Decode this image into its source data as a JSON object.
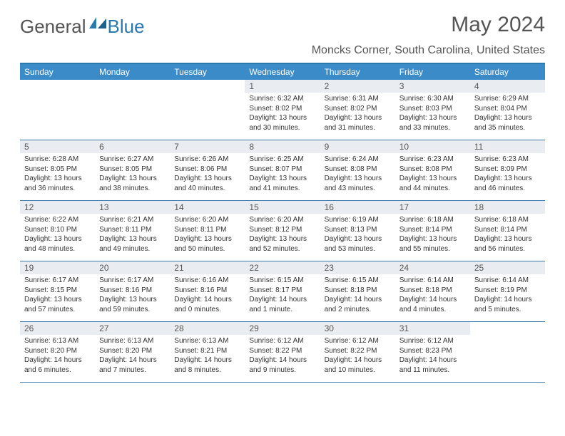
{
  "logo": {
    "part1": "General",
    "part2": "Blue"
  },
  "title": "May 2024",
  "location": "Moncks Corner, South Carolina, United States",
  "day_names": [
    "Sunday",
    "Monday",
    "Tuesday",
    "Wednesday",
    "Thursday",
    "Friday",
    "Saturday"
  ],
  "colors": {
    "accent": "#3a8bc8",
    "accent_dark": "#2a7ab0",
    "daynum_bg": "#e9edf1",
    "text": "#333333",
    "muted": "#555555"
  },
  "calendar": {
    "first_weekday_index": 3,
    "days": [
      {
        "n": 1,
        "sunrise": "6:32 AM",
        "sunset": "8:02 PM",
        "dh": 13,
        "dm": 30
      },
      {
        "n": 2,
        "sunrise": "6:31 AM",
        "sunset": "8:02 PM",
        "dh": 13,
        "dm": 31
      },
      {
        "n": 3,
        "sunrise": "6:30 AM",
        "sunset": "8:03 PM",
        "dh": 13,
        "dm": 33
      },
      {
        "n": 4,
        "sunrise": "6:29 AM",
        "sunset": "8:04 PM",
        "dh": 13,
        "dm": 35
      },
      {
        "n": 5,
        "sunrise": "6:28 AM",
        "sunset": "8:05 PM",
        "dh": 13,
        "dm": 36
      },
      {
        "n": 6,
        "sunrise": "6:27 AM",
        "sunset": "8:05 PM",
        "dh": 13,
        "dm": 38
      },
      {
        "n": 7,
        "sunrise": "6:26 AM",
        "sunset": "8:06 PM",
        "dh": 13,
        "dm": 40
      },
      {
        "n": 8,
        "sunrise": "6:25 AM",
        "sunset": "8:07 PM",
        "dh": 13,
        "dm": 41
      },
      {
        "n": 9,
        "sunrise": "6:24 AM",
        "sunset": "8:08 PM",
        "dh": 13,
        "dm": 43
      },
      {
        "n": 10,
        "sunrise": "6:23 AM",
        "sunset": "8:08 PM",
        "dh": 13,
        "dm": 44
      },
      {
        "n": 11,
        "sunrise": "6:23 AM",
        "sunset": "8:09 PM",
        "dh": 13,
        "dm": 46
      },
      {
        "n": 12,
        "sunrise": "6:22 AM",
        "sunset": "8:10 PM",
        "dh": 13,
        "dm": 48
      },
      {
        "n": 13,
        "sunrise": "6:21 AM",
        "sunset": "8:11 PM",
        "dh": 13,
        "dm": 49
      },
      {
        "n": 14,
        "sunrise": "6:20 AM",
        "sunset": "8:11 PM",
        "dh": 13,
        "dm": 50
      },
      {
        "n": 15,
        "sunrise": "6:20 AM",
        "sunset": "8:12 PM",
        "dh": 13,
        "dm": 52
      },
      {
        "n": 16,
        "sunrise": "6:19 AM",
        "sunset": "8:13 PM",
        "dh": 13,
        "dm": 53
      },
      {
        "n": 17,
        "sunrise": "6:18 AM",
        "sunset": "8:14 PM",
        "dh": 13,
        "dm": 55
      },
      {
        "n": 18,
        "sunrise": "6:18 AM",
        "sunset": "8:14 PM",
        "dh": 13,
        "dm": 56
      },
      {
        "n": 19,
        "sunrise": "6:17 AM",
        "sunset": "8:15 PM",
        "dh": 13,
        "dm": 57
      },
      {
        "n": 20,
        "sunrise": "6:17 AM",
        "sunset": "8:16 PM",
        "dh": 13,
        "dm": 59
      },
      {
        "n": 21,
        "sunrise": "6:16 AM",
        "sunset": "8:16 PM",
        "dh": 14,
        "dm": 0
      },
      {
        "n": 22,
        "sunrise": "6:15 AM",
        "sunset": "8:17 PM",
        "dh": 14,
        "dm": 1
      },
      {
        "n": 23,
        "sunrise": "6:15 AM",
        "sunset": "8:18 PM",
        "dh": 14,
        "dm": 2
      },
      {
        "n": 24,
        "sunrise": "6:14 AM",
        "sunset": "8:18 PM",
        "dh": 14,
        "dm": 4
      },
      {
        "n": 25,
        "sunrise": "6:14 AM",
        "sunset": "8:19 PM",
        "dh": 14,
        "dm": 5
      },
      {
        "n": 26,
        "sunrise": "6:13 AM",
        "sunset": "8:20 PM",
        "dh": 14,
        "dm": 6
      },
      {
        "n": 27,
        "sunrise": "6:13 AM",
        "sunset": "8:20 PM",
        "dh": 14,
        "dm": 7
      },
      {
        "n": 28,
        "sunrise": "6:13 AM",
        "sunset": "8:21 PM",
        "dh": 14,
        "dm": 8
      },
      {
        "n": 29,
        "sunrise": "6:12 AM",
        "sunset": "8:22 PM",
        "dh": 14,
        "dm": 9
      },
      {
        "n": 30,
        "sunrise": "6:12 AM",
        "sunset": "8:22 PM",
        "dh": 14,
        "dm": 10
      },
      {
        "n": 31,
        "sunrise": "6:12 AM",
        "sunset": "8:23 PM",
        "dh": 14,
        "dm": 11
      }
    ]
  },
  "labels": {
    "sunrise": "Sunrise:",
    "sunset": "Sunset:",
    "daylight": "Daylight:",
    "hours": "hours",
    "and": "and",
    "minute": "minute",
    "minutes": "minutes"
  }
}
